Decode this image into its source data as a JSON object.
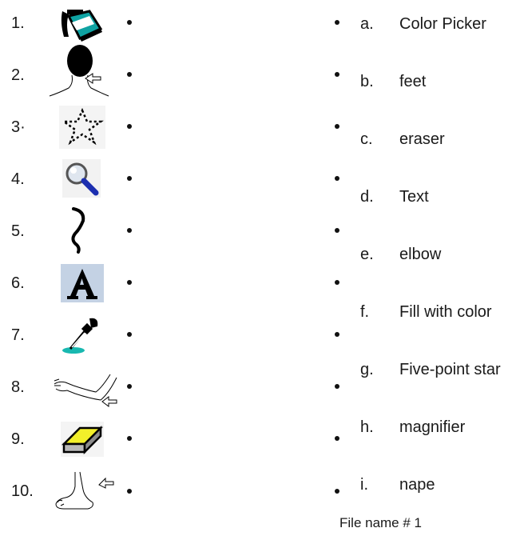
{
  "left_items": [
    {
      "number": "1.",
      "icon": "paint-bucket-icon"
    },
    {
      "number": "2.",
      "icon": "nape-icon"
    },
    {
      "number": "3·",
      "icon": "dotted-star-icon"
    },
    {
      "number": "4.",
      "icon": "magnifier-icon"
    },
    {
      "number": "5.",
      "icon": "squiggle-line-icon"
    },
    {
      "number": "6.",
      "icon": "text-a-icon"
    },
    {
      "number": "7.",
      "icon": "eyedropper-icon"
    },
    {
      "number": "8.",
      "icon": "elbow-icon"
    },
    {
      "number": "9.",
      "icon": "eraser-icon"
    },
    {
      "number": "10.",
      "icon": "foot-icon"
    }
  ],
  "right_items": [
    {
      "letter": "a.",
      "term": "Color Picker"
    },
    {
      "letter": "b.",
      "term": "feet"
    },
    {
      "letter": "c.",
      "term": "eraser"
    },
    {
      "letter": "d.",
      "term": "Text"
    },
    {
      "letter": "e.",
      "term": "elbow"
    },
    {
      "letter": "f.",
      "term": "Fill with color"
    },
    {
      "letter": "g.",
      "term": "Five-point star"
    },
    {
      "letter": "h.",
      "term": "magnifier"
    },
    {
      "letter": "i.",
      "term": "nape"
    }
  ],
  "footer": "File name # 1"
}
